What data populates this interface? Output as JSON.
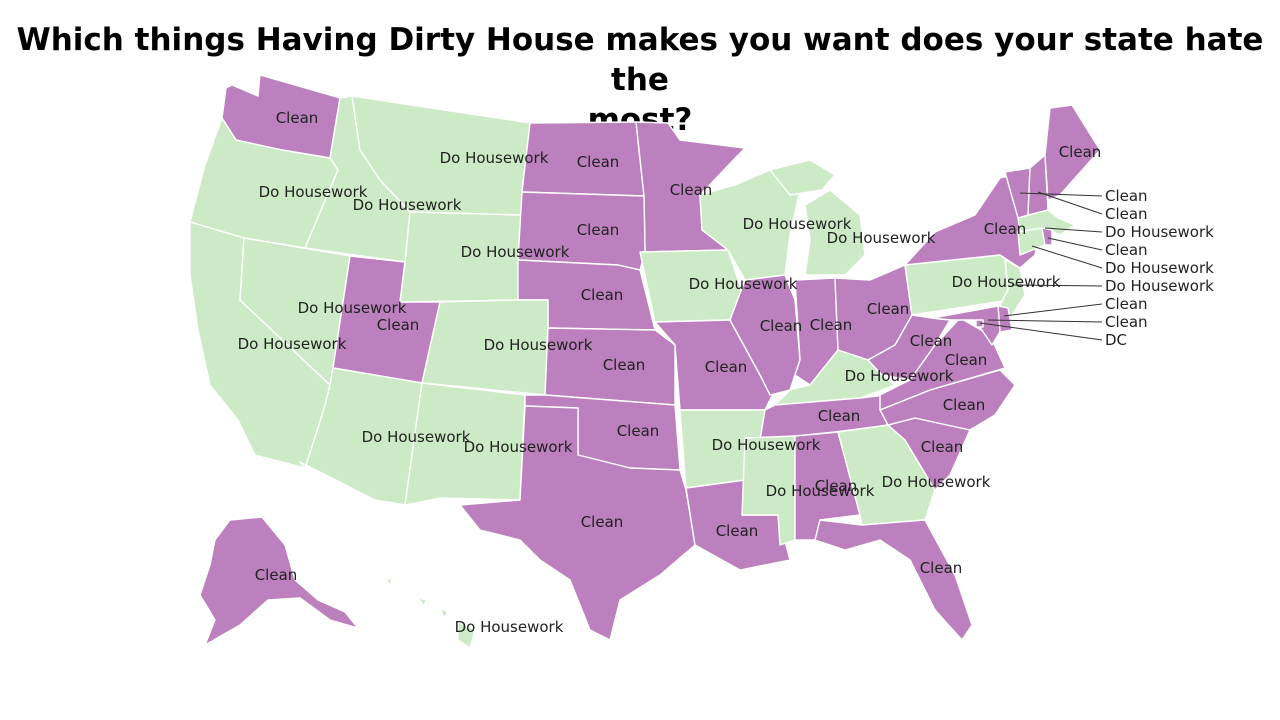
{
  "title_line1": "Which things Having Dirty House makes you want does your state hate the",
  "title_line2": "most?",
  "colors": {
    "clean": "#bb80bd",
    "housework": "#cdeac6"
  },
  "map_data": {
    "WA": {
      "label": "Clean",
      "category": "clean"
    },
    "OR": {
      "label": "Do Housework",
      "category": "housework"
    },
    "ID": {
      "label": "Do Housework",
      "category": "housework"
    },
    "MT": {
      "label": "Do Housework",
      "category": "housework"
    },
    "ND": {
      "label": "Clean",
      "category": "clean"
    },
    "MN": {
      "label": "Clean",
      "category": "clean"
    },
    "CA": {
      "label": "Do Housework",
      "category": "housework"
    },
    "NV": {
      "label": "Do Housework",
      "category": "housework"
    },
    "UT": {
      "label": "Clean",
      "category": "clean"
    },
    "WY": {
      "label": "Do Housework",
      "category": "housework"
    },
    "SD": {
      "label": "Clean",
      "category": "clean"
    },
    "NE": {
      "label": "Clean",
      "category": "clean"
    },
    "CO": {
      "label": "Do Housework",
      "category": "housework"
    },
    "KS": {
      "label": "Clean",
      "category": "clean"
    },
    "AZ": {
      "label": "Do Housework",
      "category": "housework"
    },
    "NM": {
      "label": "Do Housework",
      "category": "housework"
    },
    "OK": {
      "label": "Clean",
      "category": "clean"
    },
    "TX": {
      "label": "Clean",
      "category": "clean"
    },
    "IA": {
      "label": "Do Housework",
      "category": "housework"
    },
    "MO": {
      "label": "Clean",
      "category": "clean"
    },
    "AR": {
      "label": "Do Housework",
      "category": "housework"
    },
    "LA": {
      "label": "Clean",
      "category": "clean"
    },
    "WI": {
      "label": "Do Housework",
      "category": "housework"
    },
    "IL": {
      "label": "Clean",
      "category": "clean"
    },
    "MI": {
      "label": "Do Housework",
      "category": "housework"
    },
    "IN": {
      "label": "Clean",
      "category": "clean"
    },
    "OH": {
      "label": "Clean",
      "category": "clean"
    },
    "KY": {
      "label": "Do Housework",
      "category": "housework"
    },
    "TN": {
      "label": "Clean",
      "category": "clean"
    },
    "MS": {
      "label": "Do Housework",
      "category": "housework"
    },
    "AL": {
      "label": "Clean",
      "category": "clean"
    },
    "GA": {
      "label": "Do Housework",
      "category": "housework"
    },
    "FL": {
      "label": "Clean",
      "category": "clean"
    },
    "SC": {
      "label": "Clean",
      "category": "clean"
    },
    "NC": {
      "label": "Clean",
      "category": "clean"
    },
    "VA": {
      "label": "Clean",
      "category": "clean"
    },
    "WV": {
      "label": "Clean",
      "category": "clean"
    },
    "PA": {
      "label": "Do Housework",
      "category": "housework"
    },
    "NY": {
      "label": "Clean",
      "category": "clean"
    },
    "ME": {
      "label": "Clean",
      "category": "clean"
    },
    "VT": {
      "label": "Clean",
      "category": "clean"
    },
    "NH": {
      "label": "Clean",
      "category": "clean"
    },
    "MA": {
      "label": "Do Housework",
      "category": "housework"
    },
    "RI": {
      "label": "Clean",
      "category": "clean"
    },
    "CT": {
      "label": "Do Housework",
      "category": "housework"
    },
    "NJ": {
      "label": "Do Housework",
      "category": "housework"
    },
    "DE": {
      "label": "Clean",
      "category": "clean"
    },
    "MD": {
      "label": "Clean",
      "category": "clean"
    },
    "DC": {
      "label": "DC",
      "category": "clean"
    },
    "AK": {
      "label": "Clean",
      "category": "clean"
    },
    "HI": {
      "label": "Do Housework",
      "category": "housework"
    }
  }
}
